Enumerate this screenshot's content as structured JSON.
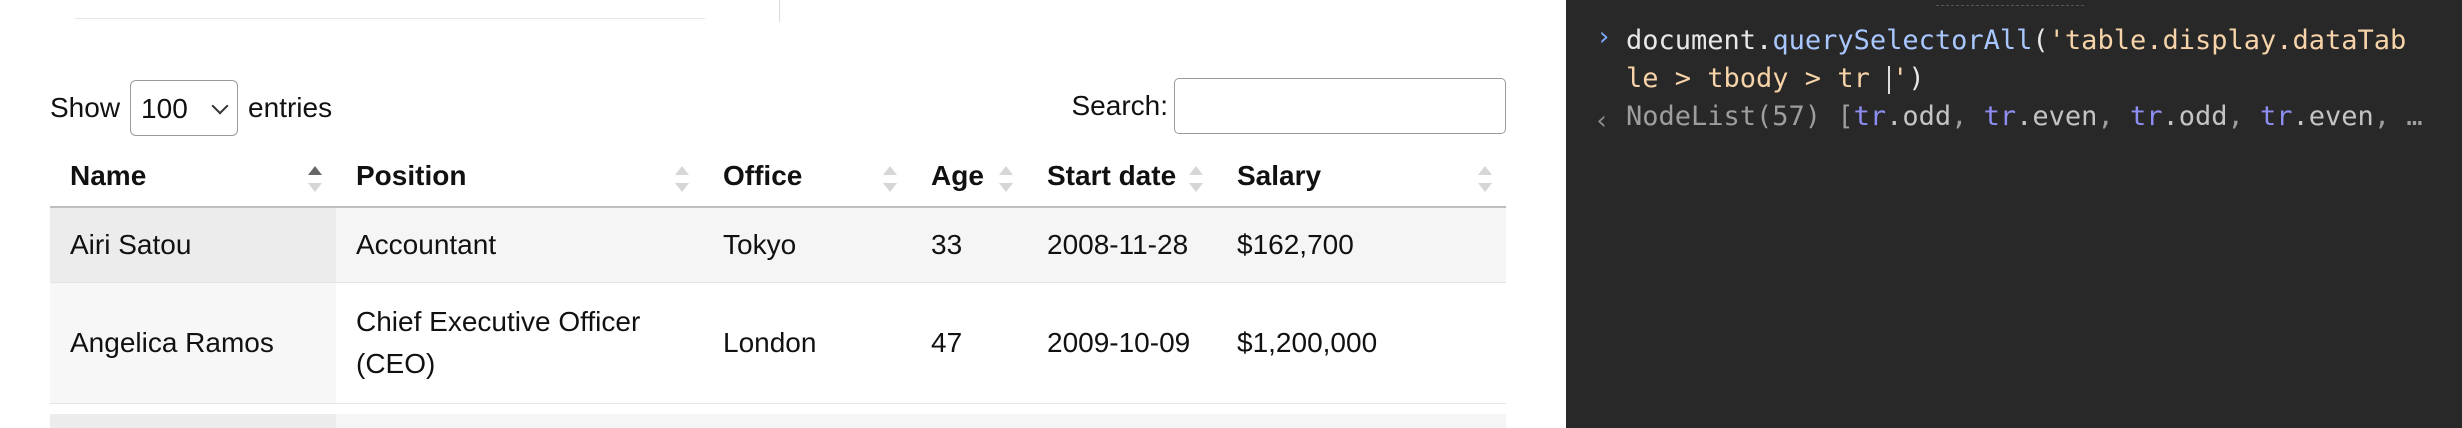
{
  "length_control": {
    "prefix": "Show",
    "value": "100",
    "suffix": "entries"
  },
  "search": {
    "label": "Search:",
    "value": ""
  },
  "table": {
    "columns": [
      "Name",
      "Position",
      "Office",
      "Age",
      "Start date",
      "Salary"
    ],
    "sorted_column": "Name",
    "rows": [
      {
        "name": "Airi Satou",
        "position": "Accountant",
        "office": "Tokyo",
        "age": "33",
        "start_date": "2008-11-28",
        "salary": "$162,700"
      },
      {
        "name": "Angelica Ramos",
        "position_line1": "Chief Executive Officer",
        "position_line2": "(CEO)",
        "office": "London",
        "age": "47",
        "start_date": "2009-10-09",
        "salary": "$1,200,000"
      }
    ]
  },
  "console": {
    "prompt_icon": "chevron-right-icon",
    "input": {
      "object": "document",
      "dot": ".",
      "method": "querySelectorAll",
      "open": "(",
      "string_part1": "'table.display.dataTab",
      "string_part2": "le > tbody > tr ",
      "string_end": "'",
      "close": ")"
    },
    "result_icon": "chevron-left-icon",
    "result": {
      "nodelist": "NodeList(57) [",
      "items": [
        {
          "tag": "tr",
          "cls": ".odd"
        },
        {
          "tag": "tr",
          "cls": ".even"
        },
        {
          "tag": "tr",
          "cls": ".odd"
        },
        {
          "tag": "tr",
          "cls": ".even"
        }
      ],
      "sep": ", ",
      "ellipsis": "…"
    }
  },
  "colors": {
    "console_bg": "#282828",
    "string": "#f6d3a8",
    "method": "#a9c7ff",
    "prompt": "#7ca9ff",
    "tag": "#8e8ef2"
  }
}
